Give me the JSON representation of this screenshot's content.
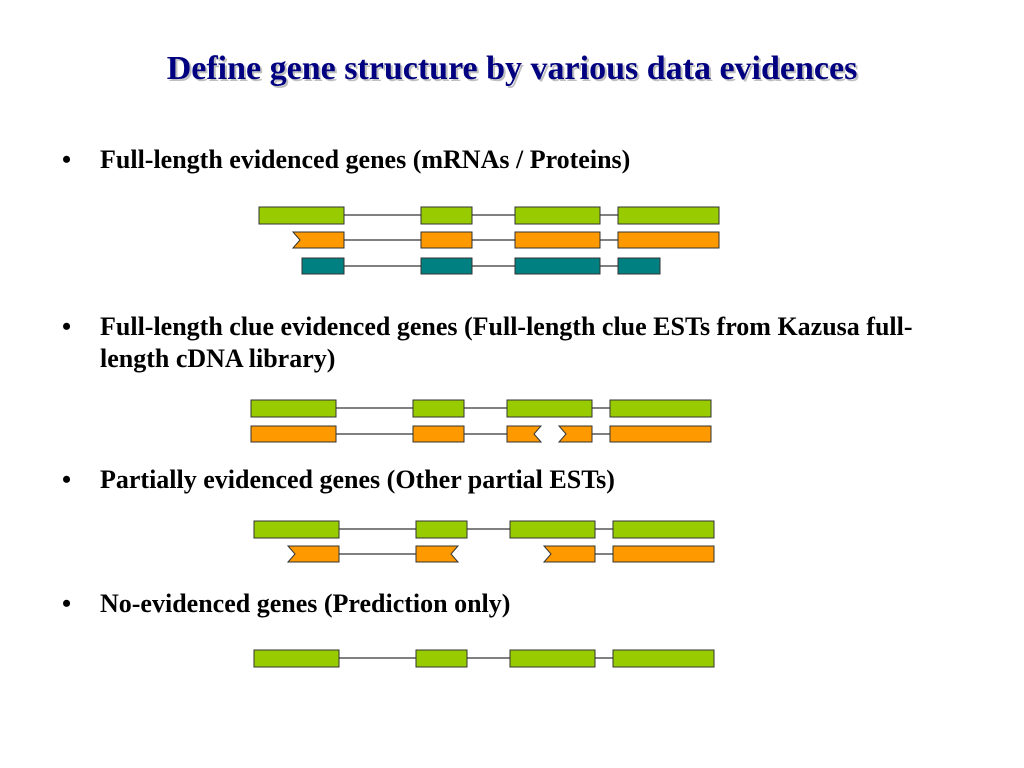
{
  "title": "Define gene structure by various data evidences",
  "bullets": [
    {
      "marker": "•",
      "text": "Full-length evidenced genes (mRNAs / Proteins)"
    },
    {
      "marker": "•",
      "text": "Full-length clue evidenced genes (Full-length clue ESTs from Kazusa full-length cDNA library)"
    },
    {
      "marker": "•",
      "text": "Partially evidenced genes (Other partial ESTs)"
    },
    {
      "marker": "•",
      "text": "No-evidenced genes (Prediction only)"
    }
  ],
  "colors": {
    "title": "#000080",
    "gene_model": "#99cc00",
    "evidence": "#ff9900",
    "protein": "#008080",
    "intron_line": "#000000",
    "exon_border": "#333333"
  }
}
